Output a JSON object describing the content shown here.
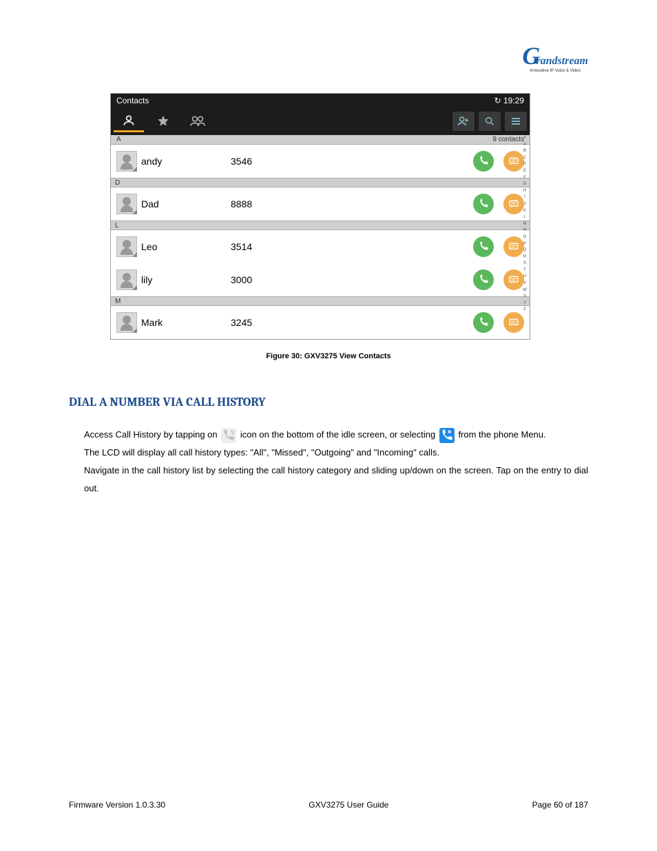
{
  "logo": {
    "brand": "Grandstream",
    "g": "G",
    "rest": "randstream",
    "tagline": "Innovative IP Voice & Video"
  },
  "screenshot": {
    "title": "Contacts",
    "time": "19:29",
    "contact_count": "9 contacts",
    "index_top": "A",
    "alphabet": [
      "#",
      "A",
      "B",
      "C",
      "D",
      "E",
      "F",
      "G",
      "H",
      "I",
      "J",
      "K",
      "L",
      "M",
      "N",
      "O",
      "P",
      "Q",
      "R",
      "S",
      "T",
      "U",
      "V",
      "W",
      "X",
      "Y",
      "Z"
    ],
    "sections": [
      {
        "letter": "A",
        "rows": [
          {
            "name": "andy",
            "number": "3546"
          }
        ]
      },
      {
        "letter": "D",
        "rows": [
          {
            "name": "Dad",
            "number": "8888"
          }
        ]
      },
      {
        "letter": "L",
        "rows": [
          {
            "name": "Leo",
            "number": "3514"
          },
          {
            "name": "lily",
            "number": "3000"
          }
        ]
      },
      {
        "letter": "M",
        "rows": [
          {
            "name": "Mark",
            "number": "3245"
          }
        ]
      }
    ]
  },
  "caption": "Figure 30: GXV3275 View Contacts",
  "heading": "DIAL A NUMBER VIA CALL HISTORY",
  "para1a": "Access Call History by tapping on",
  "para1b": "icon on the bottom of the idle screen, or selecting",
  "para1c": "from the phone Menu.",
  "para2": "The LCD will display all call history types: \"All\", \"Missed\", \"Outgoing\" and \"Incoming\" calls.",
  "para3": "Navigate in the call history list by selecting the call history category and sliding up/down on the screen. Tap on the entry to dial out.",
  "footer": {
    "left": "Firmware Version 1.0.3.30",
    "center": "GXV3275 User Guide",
    "right": "Page 60 of 187"
  }
}
